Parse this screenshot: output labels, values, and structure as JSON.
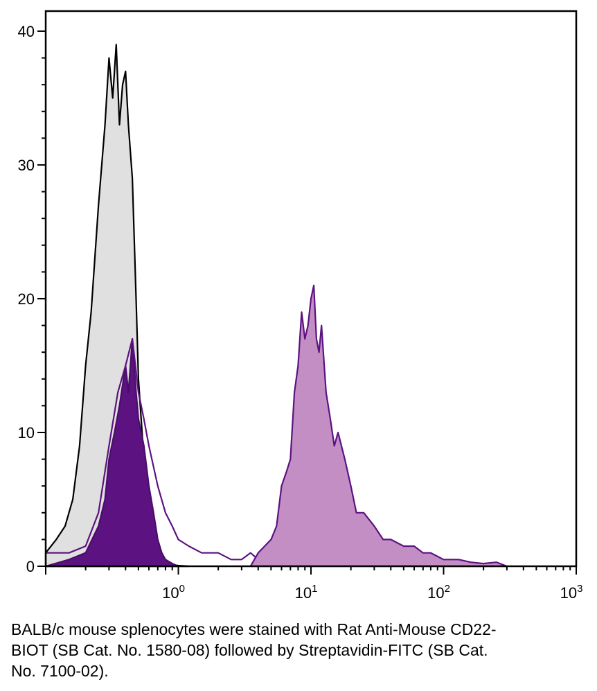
{
  "chart_data": {
    "type": "area",
    "title": "",
    "xlabel": "",
    "ylabel": "",
    "x_scale": "log",
    "xlim": [
      0.1,
      1000
    ],
    "ylim": [
      0,
      41.5
    ],
    "grid": false,
    "legend": "none",
    "x_ticks": [
      {
        "value": 1,
        "base": "10",
        "exp": "0"
      },
      {
        "value": 10,
        "base": "10",
        "exp": "1"
      },
      {
        "value": 100,
        "base": "10",
        "exp": "2"
      },
      {
        "value": 1000,
        "base": "10",
        "exp": "3"
      }
    ],
    "y_ticks": [
      {
        "value": 0,
        "label": "0"
      },
      {
        "value": 10,
        "label": "10"
      },
      {
        "value": 20,
        "label": "20"
      },
      {
        "value": 30,
        "label": "30"
      },
      {
        "value": 40,
        "label": "40"
      }
    ],
    "series": [
      {
        "style": "grey-fill-black-outline",
        "fill": "#e0e0e0",
        "stroke": "#000000",
        "x": [
          0.1,
          0.12,
          0.14,
          0.16,
          0.18,
          0.2,
          0.22,
          0.25,
          0.28,
          0.3,
          0.32,
          0.34,
          0.36,
          0.38,
          0.4,
          0.42,
          0.45,
          0.48,
          0.5,
          0.55,
          0.6,
          0.65,
          0.7,
          0.75,
          0.8,
          0.9,
          1.0,
          1.2
        ],
        "y": [
          1,
          2,
          3,
          5,
          9,
          15,
          19,
          27,
          33,
          38,
          35,
          39,
          33,
          36,
          37,
          33,
          29,
          20,
          14,
          8,
          3,
          1.5,
          0.5,
          0.3,
          0.2,
          0.1,
          0.05,
          0
        ]
      },
      {
        "style": "dark-purple-fill",
        "fill": "#5c1280",
        "stroke": "#4a0e6a",
        "x": [
          0.1,
          0.15,
          0.2,
          0.25,
          0.28,
          0.3,
          0.33,
          0.36,
          0.4,
          0.42,
          0.45,
          0.48,
          0.5,
          0.55,
          0.6,
          0.65,
          0.7,
          0.75,
          0.8,
          0.9,
          1.0
        ],
        "y": [
          0,
          0.5,
          1,
          3,
          5,
          8,
          10,
          12,
          15,
          13,
          17,
          13,
          11,
          9,
          6,
          4,
          2,
          1,
          0.5,
          0.2,
          0
        ]
      },
      {
        "style": "purple-outline",
        "fill": "none",
        "stroke": "#5c1280",
        "x": [
          0.1,
          0.15,
          0.2,
          0.25,
          0.3,
          0.35,
          0.4,
          0.45,
          0.5,
          0.55,
          0.6,
          0.7,
          0.8,
          0.9,
          1.0,
          1.2,
          1.5,
          2.0,
          2.5,
          3.0,
          3.5,
          4.0,
          4.5
        ],
        "y": [
          1,
          1,
          1.5,
          4,
          9,
          13,
          15,
          17,
          13,
          11,
          9,
          6,
          4,
          3,
          2,
          1.5,
          1,
          1,
          0.5,
          0.5,
          1,
          0.5,
          0
        ]
      },
      {
        "style": "light-purple-fill",
        "fill": "#c38ec4",
        "stroke": "#5c1280",
        "x": [
          3.5,
          4.0,
          5.0,
          5.5,
          6.0,
          6.5,
          7.0,
          7.5,
          8.0,
          8.5,
          9.0,
          9.5,
          10.0,
          10.5,
          11.0,
          11.5,
          12.0,
          13.0,
          14.0,
          15.0,
          16.0,
          18.0,
          20.0,
          22.0,
          25.0,
          30.0,
          35.0,
          40.0,
          50.0,
          60.0,
          70.0,
          80.0,
          100.0,
          130.0,
          160.0,
          200.0,
          250.0,
          300.0
        ],
        "y": [
          0,
          1,
          2,
          3,
          6,
          7,
          8,
          13,
          15,
          19,
          17,
          18,
          20,
          21,
          17,
          16,
          18,
          13,
          11,
          9,
          10,
          8,
          6,
          4,
          4,
          3,
          2,
          2,
          1.5,
          1.5,
          1,
          1,
          0.5,
          0.5,
          0.3,
          0.2,
          0.3,
          0
        ]
      }
    ]
  },
  "caption": "BALB/c mouse splenocytes were stained with Rat Anti-Mouse CD22-BIOT (SB Cat. No. 1580-08) followed by Streptavidin-FITC (SB Cat. No. 7100-02)."
}
